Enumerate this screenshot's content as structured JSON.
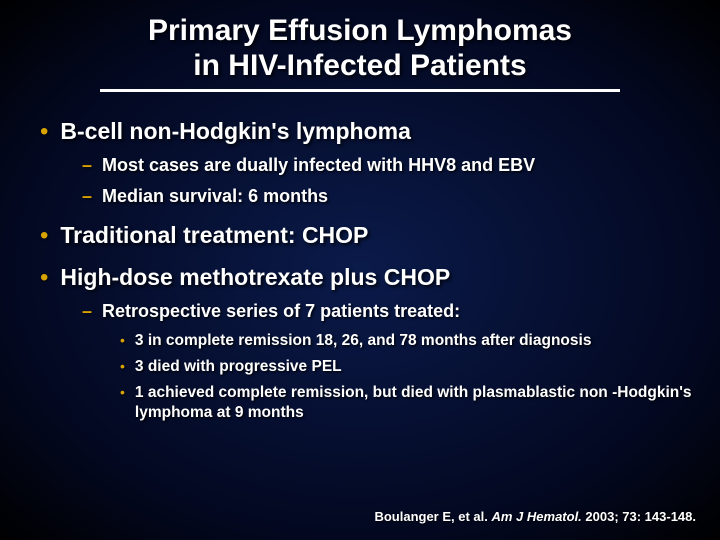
{
  "title_line1": "Primary Effusion Lymphomas",
  "title_line2": "in HIV-Infected Patients",
  "colors": {
    "bullet": "#d9a300",
    "text": "#ffffff",
    "bg_center": "#0a1a4a",
    "bg_edge": "#000000"
  },
  "bullets": [
    {
      "text": "B-cell non-Hodgkin's lymphoma",
      "sub": [
        {
          "text": "Most cases are dually infected with HHV8 and EBV"
        },
        {
          "text": "Median survival:  6 months"
        }
      ]
    },
    {
      "text": "Traditional treatment: CHOP",
      "sub": []
    },
    {
      "text": "High-dose methotrexate plus CHOP",
      "sub": [
        {
          "text": "Retrospective series of 7 patients treated:",
          "sub": [
            {
              "text": "3 in complete remission 18, 26, and 78 months after diagnosis"
            },
            {
              "text": "3 died with progressive PEL"
            },
            {
              "text": "1 achieved complete remission, but died with plasmablastic  non -Hodgkin's lymphoma at 9 months"
            }
          ]
        }
      ]
    }
  ],
  "citation_author": "Boulanger E, et al. ",
  "citation_journal": "Am J Hematol.",
  "citation_rest": " 2003; 73: 143-148."
}
